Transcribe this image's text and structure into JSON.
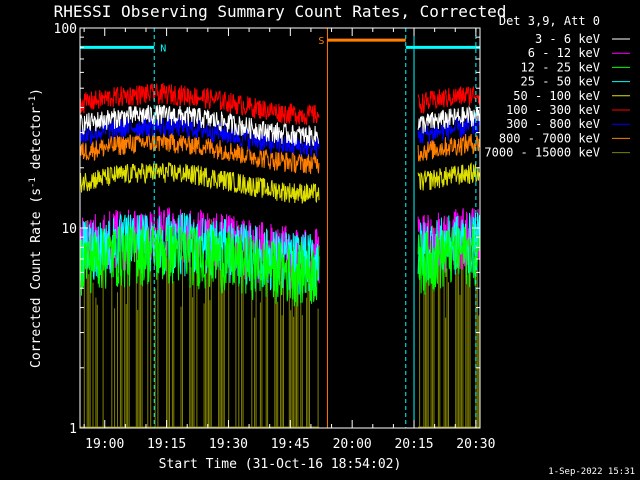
{
  "chart_data": {
    "type": "line",
    "title": "RHESSI Observing Summary Count Rates, Corrected",
    "xlabel": "Start Time (31-Oct-16 18:54:02)",
    "ylabel_parts": [
      "Corrected Count Rate (s",
      "-1",
      " detector",
      "-1",
      ")"
    ],
    "yscale": "log",
    "ylim": [
      1,
      100
    ],
    "xlim_minutes_after_1854": [
      0,
      97
    ],
    "x_ticks": [
      {
        "label": "19:00",
        "minute": 6
      },
      {
        "label": "19:15",
        "minute": 21
      },
      {
        "label": "19:30",
        "minute": 36
      },
      {
        "label": "19:45",
        "minute": 51
      },
      {
        "label": "20:00",
        "minute": 66
      },
      {
        "label": "20:15",
        "minute": 81
      },
      {
        "label": "20:30",
        "minute": 96
      }
    ],
    "y_ticks": [
      {
        "label": "1",
        "value": 1
      },
      {
        "label": "10",
        "value": 10
      },
      {
        "label": "100",
        "value": 100
      }
    ],
    "legend_title": "Det 3,9, Att 0",
    "legend_position": "right",
    "series": [
      {
        "name": "3 - 6 keV",
        "color": "#ffffff",
        "level": 33,
        "segments": [
          [
            0,
            58
          ],
          [
            82,
            97
          ]
        ]
      },
      {
        "name": "6 - 12 keV",
        "color": "#ff00ff",
        "level": 8.5,
        "segments": [
          [
            0,
            58
          ],
          [
            82,
            97
          ]
        ]
      },
      {
        "name": "12 - 25 keV",
        "color": "#00ff00",
        "level": 7.0,
        "segments": [
          [
            0,
            58
          ],
          [
            82,
            97
          ]
        ]
      },
      {
        "name": "25 - 50 keV",
        "color": "#00ffff",
        "level": 8.0,
        "segments": [
          [
            0,
            58
          ],
          [
            82,
            97
          ]
        ]
      },
      {
        "name": "50 - 100 keV",
        "color": "#e0e000",
        "level": 17,
        "segments": [
          [
            0,
            58
          ],
          [
            82,
            97
          ]
        ]
      },
      {
        "name": "100 - 300 keV",
        "color": "#ff0000",
        "level": 42,
        "segments": [
          [
            0,
            58
          ],
          [
            82,
            97
          ]
        ]
      },
      {
        "name": "300 - 800 keV",
        "color": "#0000ff",
        "level": 29,
        "segments": [
          [
            0,
            58
          ],
          [
            82,
            97
          ]
        ]
      },
      {
        "name": "800 - 7000 keV",
        "color": "#ff8000",
        "level": 24,
        "segments": [
          [
            0,
            58
          ],
          [
            82,
            97
          ]
        ]
      },
      {
        "name": "7000 - 15000 keV",
        "color": "#808000",
        "level": 1,
        "segments": [
          [
            0,
            58
          ],
          [
            82,
            97
          ]
        ]
      }
    ],
    "flags": [
      {
        "label": "N",
        "color": "#00ffff",
        "start_minute": 0,
        "end_minute": 18,
        "bar_value": 80
      },
      {
        "label": "S",
        "color": "#ff8000",
        "start_minute": 60,
        "end_minute": 79,
        "bar_value": 87
      },
      {
        "label": "",
        "color": "#00ffff",
        "start_minute": 79,
        "end_minute": 97,
        "bar_value": 80
      }
    ],
    "vertical_markers": [
      {
        "minute": 18,
        "color": "#00ffff",
        "style": "dashed"
      },
      {
        "minute": 60,
        "color": "#ff8000",
        "style": "solid"
      },
      {
        "minute": 79,
        "color": "#00ffff",
        "style": "dashed"
      },
      {
        "minute": 81,
        "color": "#00ffff",
        "style": "solid"
      },
      {
        "minute": 96,
        "color": "#00ffff",
        "style": "dashed"
      }
    ]
  },
  "footer": {
    "date_stamp": "1-Sep-2022 15:31"
  }
}
